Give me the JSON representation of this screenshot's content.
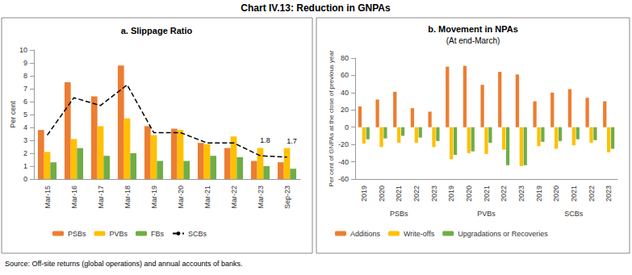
{
  "title": "Chart IV.13: Reduction in GNPAs",
  "source": "Source: Off-site returns (global operations) and annual accounts of banks.",
  "chart_data": [
    {
      "type": "bar",
      "title": "a. Slippage Ratio",
      "y_label": "Per cent",
      "categories": [
        "Mar-15",
        "Mar-16",
        "Mar-17",
        "Mar-18",
        "Mar-19",
        "Mar-20",
        "Mar-21",
        "Mar-22",
        "Mar-23",
        "Sep-23"
      ],
      "series": [
        {
          "name": "PSBs",
          "color": "#ED7D31",
          "values": [
            3.8,
            7.5,
            6.4,
            8.8,
            4.1,
            3.9,
            2.8,
            2.4,
            1.4,
            1.3
          ]
        },
        {
          "name": "PVBs",
          "color": "#FFC000",
          "values": [
            2.1,
            3.1,
            4.1,
            4.7,
            3.4,
            3.8,
            2.7,
            3.3,
            2.4,
            2.4
          ]
        },
        {
          "name": "FBs",
          "color": "#70AD47",
          "values": [
            1.3,
            2.4,
            1.8,
            2.0,
            1.4,
            1.4,
            1.8,
            1.7,
            1.0,
            0.8
          ]
        },
        {
          "name": "SCBs",
          "color": "#000000",
          "type": "line",
          "line_style": "dashed",
          "marker": "none",
          "values": [
            3.4,
            6.3,
            5.7,
            7.3,
            3.6,
            3.6,
            2.8,
            2.8,
            1.8,
            1.7
          ]
        }
      ],
      "annotations": [
        {
          "series": "SCBs",
          "x": "Mar-23",
          "y": 1.8,
          "text": "1.8"
        },
        {
          "series": "SCBs",
          "x": "Sep-23",
          "y": 1.7,
          "text": "1.7"
        }
      ],
      "ylim": [
        0,
        10
      ],
      "yticks": [
        0,
        1,
        2,
        3,
        4,
        5,
        6,
        7,
        8,
        9,
        10
      ],
      "grid": false,
      "legend": "bottom"
    },
    {
      "type": "bar",
      "title": "b. Movement in NPAs",
      "subtitle": "(At end-March)",
      "y_label": "Per cent of GNPAs at the close of previous year",
      "categories": [
        "2019",
        "2020",
        "2021",
        "2022",
        "2023",
        "2019",
        "2020",
        "2021",
        "2022",
        "2023",
        "2019",
        "2020",
        "2021",
        "2022",
        "2023"
      ],
      "group_labels": [
        "PSBs",
        "PVBs",
        "SCBs"
      ],
      "series": [
        {
          "name": "Additions",
          "color": "#ED7D31",
          "values": [
            24,
            32,
            41,
            22,
            18,
            70,
            71,
            49,
            64,
            61,
            30,
            40,
            44,
            34,
            30
          ]
        },
        {
          "name": "Write-offs",
          "color": "#FFC000",
          "values": [
            -19,
            -23,
            -18,
            -18,
            -23,
            -37,
            -30,
            -31,
            -26,
            -45,
            -22,
            -25,
            -21,
            -18,
            -29
          ]
        },
        {
          "name": "Upgradations or Recoveries",
          "color": "#70AD47",
          "values": [
            -14,
            -13,
            -10,
            -12,
            -16,
            -32,
            -28,
            -18,
            -44,
            -44,
            -17,
            -16,
            -14,
            -15,
            -25
          ]
        }
      ],
      "ylim": [
        -60,
        80
      ],
      "yticks": [
        -60,
        -40,
        -20,
        0,
        20,
        40,
        60,
        80
      ],
      "grid": false,
      "legend": "bottom"
    }
  ]
}
